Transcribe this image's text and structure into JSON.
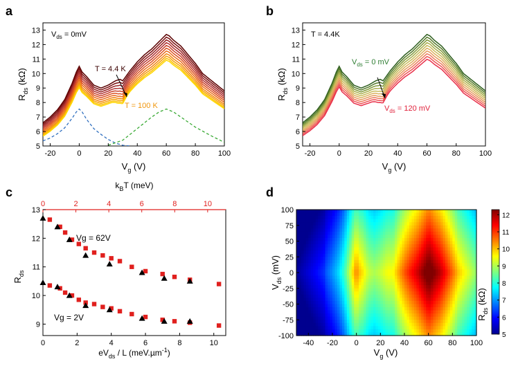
{
  "figure": {
    "panel_labels": [
      "a",
      "b",
      "c",
      "d"
    ]
  },
  "chart_data": [
    {
      "panel": "a",
      "type": "line",
      "xlabel_main": "V",
      "xlabel_sub": "g",
      "xlabel_unit": " (V)",
      "ylabel_main": "R",
      "ylabel_sub": "ds",
      "ylabel_unit": " (kΩ)",
      "xlim": [
        -25,
        100
      ],
      "ylim": [
        5,
        13.5
      ],
      "xticks": [
        -20,
        0,
        20,
        40,
        60,
        80,
        100
      ],
      "yticks": [
        5,
        6,
        7,
        8,
        9,
        10,
        11,
        12,
        13
      ],
      "corner_label_main": "V",
      "corner_label_sub": "ds",
      "corner_label_rest": " = 0mV",
      "annotation_top": "T = 4.4 K",
      "annotation_bottom": "T = 100 K",
      "series_colors": [
        "#5a0000",
        "#7a0d0d",
        "#962020",
        "#b03030",
        "#c84028",
        "#dc5020",
        "#ea6a18",
        "#f28410",
        "#f7a008",
        "#fbc000",
        "#ffd700"
      ],
      "curve_scales": [
        1.0,
        0.985,
        0.97,
        0.955,
        0.94,
        0.925,
        0.91,
        0.895,
        0.882,
        0.87,
        0.86
      ],
      "curve_bumps": [
        0.5,
        0.4,
        0.3,
        0.2,
        0.12,
        0.05,
        0,
        0,
        0,
        0,
        0
      ],
      "series_4p4K": {
        "x": [
          -25,
          -20,
          -15,
          -10,
          -5,
          -2,
          0,
          2,
          5,
          10,
          15,
          20,
          25,
          28,
          30,
          35,
          40,
          45,
          50,
          55,
          58,
          60,
          62,
          65,
          70,
          75,
          80,
          85,
          90,
          95,
          100
        ],
        "y": [
          6.6,
          7.0,
          7.5,
          8.2,
          9.3,
          10.1,
          10.5,
          10.1,
          9.8,
          9.2,
          9.0,
          9.2,
          9.5,
          9.6,
          9.5,
          10.2,
          10.8,
          11.3,
          11.7,
          12.2,
          12.5,
          12.7,
          12.6,
          12.3,
          11.9,
          11.3,
          10.7,
          10.0,
          9.6,
          9.2,
          8.8
        ]
      },
      "fit_dirac": {
        "color": "#2f6fbf",
        "x": [
          -25,
          -20,
          -15,
          -10,
          -5,
          -2,
          0,
          2,
          5,
          10,
          15,
          20,
          25,
          30,
          35
        ],
        "y": [
          5.35,
          5.55,
          5.85,
          6.25,
          6.9,
          7.35,
          7.55,
          7.35,
          6.85,
          6.2,
          5.8,
          5.45,
          5.2,
          5.05,
          5.0
        ]
      },
      "fit_second": {
        "color": "#3aaa35",
        "x": [
          20,
          30,
          40,
          50,
          55,
          60,
          65,
          70,
          80,
          90,
          100
        ],
        "y": [
          5.05,
          5.4,
          6.2,
          7.0,
          7.35,
          7.55,
          7.35,
          7.0,
          6.3,
          5.75,
          5.25
        ]
      }
    },
    {
      "panel": "b",
      "type": "line",
      "xlabel_main": "V",
      "xlabel_sub": "g",
      "xlabel_unit": " (V)",
      "ylabel_main": "R",
      "ylabel_sub": "ds",
      "ylabel_unit": " (kΩ)",
      "xlim": [
        -25,
        100
      ],
      "ylim": [
        5,
        13.5
      ],
      "xticks": [
        -20,
        0,
        20,
        40,
        60,
        80,
        100
      ],
      "yticks": [
        5,
        6,
        7,
        8,
        9,
        10,
        11,
        12,
        13
      ],
      "corner_label": "T = 4.4K",
      "annotation_top_main": "V",
      "annotation_top_sub": "ds",
      "annotation_top_rest": " = 0 mV",
      "annotation_bottom_main": "V",
      "annotation_bottom_sub": "ds",
      "annotation_bottom_rest": " = 120 mV",
      "annotation_top_color": "#2e7d32",
      "annotation_bottom_color": "#e0203a",
      "series_colors": [
        "#2e5e1e",
        "#557a2a",
        "#7f9838",
        "#a8ad4a",
        "#c8ba58",
        "#dcb05c",
        "#e69a5c",
        "#ec7a5a",
        "#ee5255",
        "#e8304a"
      ],
      "curve_scales": [
        1.0,
        0.985,
        0.97,
        0.955,
        0.94,
        0.925,
        0.91,
        0.895,
        0.88,
        0.865
      ],
      "curve_bumps": [
        0.5,
        0.4,
        0.3,
        0.2,
        0.1,
        0.05,
        0,
        0,
        0,
        0
      ]
    },
    {
      "panel": "c",
      "type": "scatter",
      "xlabel": "eV",
      "xlabel_sub": "ds",
      "xlabel_rest": " / L (meV.µm",
      "xlabel_sup": "-1",
      "xlabel_end": ")",
      "top_xlabel_main": "k",
      "top_xlabel_sub": "B",
      "top_xlabel_rest": "T (meV)",
      "ylabel_main": "R",
      "ylabel_sub": "ds",
      "xlim": [
        0,
        10.7
      ],
      "ylim": [
        8.6,
        13
      ],
      "xticks": [
        0,
        2,
        4,
        6,
        8,
        10
      ],
      "yticks": [
        9,
        10,
        11,
        12,
        13
      ],
      "top_xlim": [
        0,
        11.1
      ],
      "top_xticks": [
        0,
        2,
        4,
        6,
        8,
        10
      ],
      "top_axis_color": "#e0201e",
      "label_vg62": "Vg = 62V",
      "label_vg2": "Vg = 2V",
      "series": [
        {
          "name": "Vg = 62V (eVds/L)",
          "marker": "square",
          "color": "#e0201e",
          "x": [
            0.4,
            1.0,
            1.3,
            1.7,
            2.1,
            2.5,
            3.0,
            3.5,
            4.0,
            4.5,
            5.2,
            6.0,
            7.0,
            7.7,
            8.6,
            10.3
          ],
          "y": [
            12.65,
            12.4,
            12.2,
            11.95,
            11.8,
            11.65,
            11.5,
            11.4,
            11.3,
            11.2,
            11.0,
            10.85,
            10.75,
            10.65,
            10.55,
            10.4
          ]
        },
        {
          "name": "Vg = 62V (kBT)",
          "marker": "triangle",
          "color": "#000000",
          "x": [
            0,
            0.85,
            1.55,
            2.5,
            3.9,
            5.8,
            7.1,
            8.6
          ],
          "y": [
            12.7,
            12.4,
            11.95,
            11.4,
            11.1,
            10.8,
            10.6,
            10.5
          ]
        },
        {
          "name": "Vg = 2V (eVds/L)",
          "marker": "square",
          "color": "#e0201e",
          "x": [
            0.4,
            1.0,
            1.3,
            1.7,
            2.1,
            2.5,
            3.0,
            3.5,
            4.0,
            4.5,
            5.2,
            6.0,
            7.0,
            7.7,
            8.6,
            10.3
          ],
          "y": [
            10.35,
            10.25,
            10.1,
            10.0,
            9.85,
            9.75,
            9.7,
            9.6,
            9.55,
            9.45,
            9.35,
            9.25,
            9.15,
            9.1,
            9.05,
            8.95
          ]
        },
        {
          "name": "Vg = 2V (kBT)",
          "marker": "triangle",
          "color": "#000000",
          "x": [
            0,
            0.85,
            1.55,
            2.5,
            3.9,
            5.8,
            7.1,
            8.6
          ],
          "y": [
            10.45,
            10.3,
            10.0,
            9.65,
            9.5,
            9.2,
            9.1,
            9.1
          ]
        }
      ]
    },
    {
      "panel": "d",
      "type": "heatmap",
      "xlabel_main": "V",
      "xlabel_sub": "g",
      "xlabel_unit": " (V)",
      "ylabel_main": "V",
      "ylabel_sub": "ds",
      "ylabel_unit": " (mV)",
      "xlim": [
        -50,
        100
      ],
      "ylim": [
        -100,
        100
      ],
      "xticks": [
        -40,
        -20,
        0,
        20,
        40,
        60,
        80,
        100
      ],
      "yticks": [
        -100,
        -75,
        -50,
        -25,
        0,
        25,
        50,
        75,
        100
      ],
      "colorbar": {
        "min": 5,
        "max": 12.3,
        "ticks": [
          5,
          6,
          7,
          8,
          9,
          10,
          11,
          12
        ],
        "label_main": "R",
        "label_sub": "ds",
        "label_unit": " (kΩ)"
      },
      "peaks": [
        {
          "vg": 62,
          "vds": 0,
          "r": 12.3
        },
        {
          "vg": 0,
          "vds": 0,
          "r": 11.0
        }
      ]
    }
  ]
}
